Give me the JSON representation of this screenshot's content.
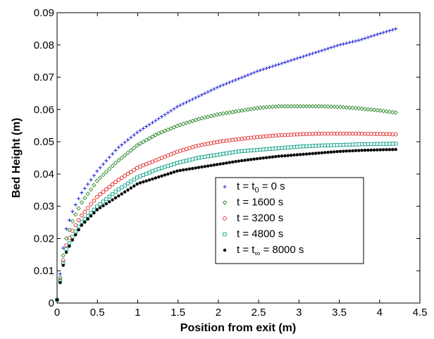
{
  "chart_data": {
    "type": "scatter",
    "title": "",
    "xlabel": "Position from exit (m)",
    "ylabel": "Bed Height (m)",
    "xlim": [
      0,
      4.5
    ],
    "ylim": [
      0,
      0.09
    ],
    "grid": false,
    "legend_position": "lower-right",
    "x_ticks": [
      "0",
      "0.5",
      "1",
      "1.5",
      "2",
      "2.5",
      "3",
      "3.5",
      "4",
      "4.5"
    ],
    "y_ticks": [
      "0",
      "0.01",
      "0.02",
      "0.03",
      "0.04",
      "0.05",
      "0.06",
      "0.07",
      "0.08",
      "0.09"
    ],
    "x": [
      0,
      0.1,
      0.2,
      0.3,
      0.5,
      0.75,
      1.0,
      1.25,
      1.5,
      1.75,
      2.0,
      2.25,
      2.5,
      2.75,
      3.0,
      3.25,
      3.5,
      3.75,
      4.0,
      4.2
    ],
    "series": [
      {
        "legend": {
          "prefix": "t = t",
          "sub": "0",
          "suffix": " = 0 s"
        },
        "marker": "plus",
        "color": "#1f1fd6",
        "values": [
          0.001,
          0.022,
          0.029,
          0.034,
          0.041,
          0.048,
          0.053,
          0.057,
          0.061,
          0.064,
          0.067,
          0.0695,
          0.072,
          0.074,
          0.076,
          0.078,
          0.08,
          0.0815,
          0.0835,
          0.085
        ]
      },
      {
        "legend": {
          "prefix": "t = 1600 s",
          "sub": "",
          "suffix": ""
        },
        "marker": "diamond",
        "color": "#2e8b2e",
        "values": [
          0.001,
          0.019,
          0.026,
          0.031,
          0.038,
          0.044,
          0.049,
          0.0525,
          0.055,
          0.057,
          0.0585,
          0.0595,
          0.0605,
          0.061,
          0.061,
          0.061,
          0.0608,
          0.0603,
          0.0597,
          0.059
        ]
      },
      {
        "legend": {
          "prefix": "t = 3200 s",
          "sub": "",
          "suffix": ""
        },
        "marker": "circle",
        "color": "#e02020",
        "values": [
          0.001,
          0.017,
          0.023,
          0.027,
          0.033,
          0.038,
          0.042,
          0.0445,
          0.047,
          0.0488,
          0.05,
          0.0508,
          0.0515,
          0.052,
          0.0523,
          0.0525,
          0.0525,
          0.0525,
          0.0524,
          0.0523
        ]
      },
      {
        "legend": {
          "prefix": "t = 4800 s",
          "sub": "",
          "suffix": ""
        },
        "marker": "square",
        "color": "#11a08a",
        "values": [
          0.001,
          0.016,
          0.021,
          0.025,
          0.03,
          0.035,
          0.039,
          0.0415,
          0.0435,
          0.045,
          0.046,
          0.047,
          0.0475,
          0.048,
          0.0485,
          0.0488,
          0.049,
          0.0492,
          0.0493,
          0.0494
        ]
      },
      {
        "legend": {
          "prefix": "t = t",
          "sub": "∞",
          "suffix": " = 8000 s"
        },
        "marker": "dot",
        "color": "#000000",
        "values": [
          0.001,
          0.015,
          0.02,
          0.024,
          0.029,
          0.033,
          0.037,
          0.039,
          0.041,
          0.042,
          0.043,
          0.044,
          0.0448,
          0.0455,
          0.046,
          0.0465,
          0.047,
          0.0473,
          0.0475,
          0.0476
        ]
      }
    ]
  }
}
